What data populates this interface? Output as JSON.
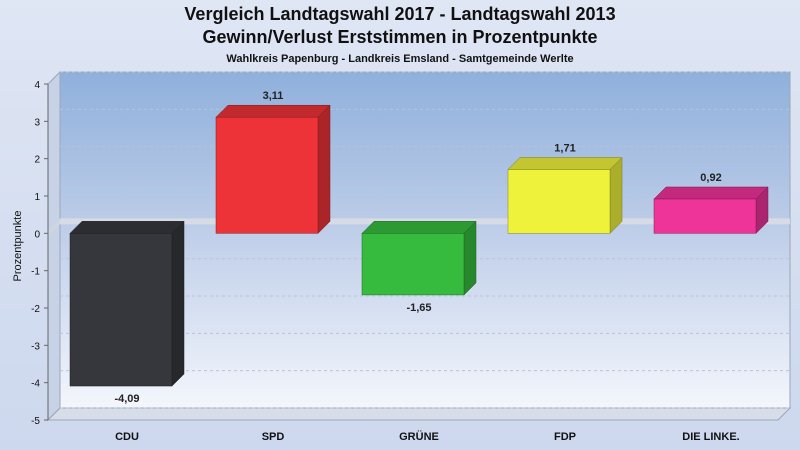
{
  "chart_data": {
    "type": "bar",
    "title": "Vergleich Landtagswahl 2017 - Landtagswahl 2013",
    "subtitle": "Gewinn/Verlust Erststimmen in Prozentpunkte",
    "caption": "Wahlkreis Papenburg - Landkreis Emsland - Samtgemeinde Werlte",
    "ylabel": "Prozentpunkte",
    "xlabel": "",
    "ylim": [
      -5,
      4
    ],
    "yticks": [
      4,
      3,
      2,
      1,
      0,
      -1,
      -2,
      -3,
      -4,
      -5
    ],
    "categories": [
      "CDU",
      "SPD",
      "GRÜNE",
      "FDP",
      "DIE LINKE."
    ],
    "values": [
      -4.09,
      3.11,
      -1.65,
      1.71,
      0.92
    ],
    "value_labels": [
      "-4,09",
      "3,11",
      "-1,65",
      "1,71",
      "0,92"
    ],
    "colors": [
      "#35373c",
      "#ee3338",
      "#36bb3e",
      "#eef23a",
      "#ee3399"
    ],
    "grid": true,
    "legend": "none"
  }
}
